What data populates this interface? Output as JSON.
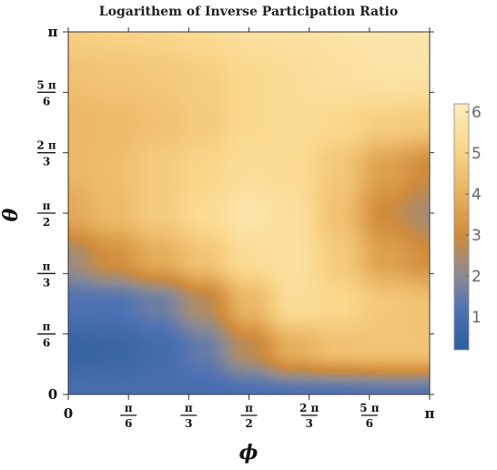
{
  "chart_data": {
    "type": "heatmap",
    "title": "Logarithem of Inverse Participation Ratio",
    "xlabel": "ϕ",
    "ylabel": "θ",
    "x_range": [
      0,
      3.14159
    ],
    "y_range": [
      0,
      3.14159
    ],
    "x_ticks": [
      {
        "value": 0,
        "label": "0"
      },
      {
        "value": 0.5236,
        "num": "π",
        "den": "6"
      },
      {
        "value": 1.0472,
        "num": "π",
        "den": "3"
      },
      {
        "value": 1.5708,
        "num": "π",
        "den": "2"
      },
      {
        "value": 2.0944,
        "num": "2 π",
        "den": "3"
      },
      {
        "value": 2.618,
        "num": "5 π",
        "den": "6"
      },
      {
        "value": 3.14159,
        "label": "π"
      }
    ],
    "y_ticks": [
      {
        "value": 0,
        "label": "0"
      },
      {
        "value": 0.5236,
        "num": "π",
        "den": "6"
      },
      {
        "value": 1.0472,
        "num": "π",
        "den": "3"
      },
      {
        "value": 1.5708,
        "num": "π",
        "den": "2"
      },
      {
        "value": 2.0944,
        "num": "2 π",
        "den": "3"
      },
      {
        "value": 2.618,
        "num": "5 π",
        "den": "6"
      },
      {
        "value": 3.14159,
        "label": "π"
      }
    ],
    "grid": false,
    "colorbar": {
      "range": [
        0.2,
        6.2
      ],
      "ticks": [
        1,
        2,
        3,
        4,
        5,
        6
      ],
      "colors": [
        "#2b5d9c",
        "#4f72b4",
        "#8b8a93",
        "#d08c3c",
        "#ebb865",
        "#fbd88e",
        "#fcedbd"
      ],
      "stops": [
        0.2,
        1.2,
        2.0,
        3.0,
        4.2,
        5.2,
        6.2
      ]
    },
    "z_grid": {
      "x": [
        0,
        0.3927,
        0.7854,
        1.1781,
        1.5708,
        1.9635,
        2.3562,
        2.7489,
        3.14159
      ],
      "y": [
        0,
        0.3927,
        0.7854,
        1.1781,
        1.5708,
        1.9635,
        2.3562,
        2.7489,
        3.14159
      ],
      "values": [
        [
          1.0,
          1.0,
          1.0,
          1.0,
          1.1,
          1.2,
          1.2,
          1.3,
          1.3
        ],
        [
          0.5,
          0.6,
          0.9,
          1.5,
          2.7,
          4.0,
          4.5,
          4.6,
          4.6
        ],
        [
          1.2,
          1.2,
          1.6,
          2.6,
          4.2,
          5.4,
          5.2,
          4.7,
          4.5
        ],
        [
          2.3,
          3.1,
          3.9,
          4.6,
          5.4,
          5.6,
          4.8,
          3.6,
          3.1
        ],
        [
          3.8,
          4.3,
          4.8,
          5.3,
          5.8,
          5.5,
          4.5,
          3.0,
          2.4
        ],
        [
          4.2,
          4.4,
          4.8,
          5.1,
          5.4,
          5.3,
          4.7,
          3.6,
          3.0
        ],
        [
          4.2,
          4.3,
          4.5,
          4.8,
          5.2,
          5.4,
          5.2,
          4.9,
          4.8
        ],
        [
          4.5,
          4.6,
          4.7,
          4.9,
          5.2,
          5.4,
          5.6,
          5.7,
          5.7
        ],
        [
          4.9,
          5.0,
          5.1,
          5.3,
          5.5,
          5.6,
          5.7,
          5.8,
          5.8
        ]
      ]
    }
  }
}
